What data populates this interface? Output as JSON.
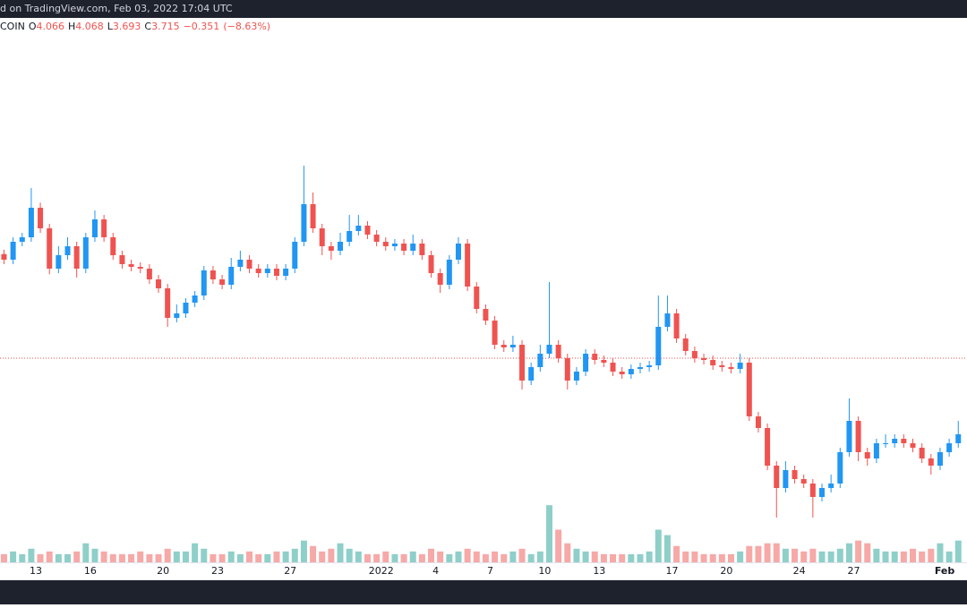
{
  "header": "d on TradingView.com, Feb 03, 2022 17:04 UTC",
  "chart_data": {
    "type": "candlestick",
    "symbol": "COIN",
    "ohlc": [
      {
        "key": "O",
        "value": 4.066
      },
      {
        "key": "H",
        "value": 4.068
      },
      {
        "key": "L",
        "value": 3.693
      },
      {
        "key": "C",
        "value": 3.715
      }
    ],
    "change": {
      "value": -0.351,
      "label": "−0.351"
    },
    "change_pct": {
      "value": -8.63,
      "label": "(−8.63%)"
    },
    "up_color": "#2196f3",
    "down_color": "#ef5350",
    "volume_up_color": "#8fcfc9",
    "volume_down_color": "#f6a9a7",
    "xlim": [
      11.03,
      64.23
    ],
    "xticks": [
      13,
      16,
      20,
      23,
      27,
      {
        "value": 32,
        "label": "2022"
      },
      {
        "value": 35,
        "label": "4"
      },
      {
        "value": 38,
        "label": "7"
      },
      {
        "value": 41,
        "label": "10"
      },
      {
        "value": 44,
        "label": "13"
      },
      {
        "value": 48,
        "label": "17"
      },
      {
        "value": 51,
        "label": "20"
      },
      {
        "value": 55,
        "label": "24"
      },
      {
        "value": 58,
        "label": "27"
      },
      {
        "value": 63,
        "label": "Feb"
      }
    ],
    "ylim": [
      2.803,
      5.235
    ],
    "y2lim": [
      0,
      200
    ],
    "x": [
      11.25,
      11.75,
      12.25,
      12.75,
      13.25,
      13.75,
      14.25,
      14.75,
      15.25,
      15.75,
      16.25,
      16.75,
      17.25,
      17.75,
      18.25,
      18.75,
      19.25,
      19.75,
      20.25,
      20.75,
      21.25,
      21.75,
      22.25,
      22.75,
      23.25,
      23.75,
      24.25,
      24.75,
      25.25,
      25.75,
      26.25,
      26.75,
      27.25,
      27.75,
      28.25,
      28.75,
      29.25,
      29.75,
      30.25,
      30.75,
      31.25,
      31.75,
      32.25,
      32.75,
      33.25,
      33.75,
      34.25,
      34.75,
      35.25,
      35.75,
      36.25,
      36.75,
      37.25,
      37.75,
      38.25,
      38.75,
      39.25,
      39.75,
      40.25,
      40.75,
      41.25,
      41.75,
      42.25,
      42.75,
      43.25,
      43.75,
      44.25,
      44.75,
      45.25,
      45.75,
      46.25,
      46.75,
      47.25,
      47.75,
      48.25,
      48.75,
      49.25,
      49.75,
      50.25,
      50.75,
      51.25,
      51.75,
      52.25,
      52.75,
      53.25,
      53.75,
      54.25,
      54.75,
      55.25,
      55.75,
      56.25,
      56.75,
      57.25,
      57.75,
      58.25,
      58.75,
      59.25,
      59.75,
      60.25,
      60.75,
      61.25,
      61.75,
      62.25,
      62.75,
      63.25,
      63.75
    ],
    "open": [
      4.18,
      4.155,
      4.235,
      4.255,
      4.387,
      4.295,
      4.115,
      4.175,
      4.215,
      4.115,
      4.255,
      4.335,
      4.255,
      4.175,
      4.135,
      4.123,
      4.115,
      4.067,
      4.027,
      3.895,
      3.915,
      3.963,
      3.995,
      4.107,
      4.067,
      4.043,
      4.123,
      4.155,
      4.115,
      4.095,
      4.115,
      4.083,
      4.115,
      4.235,
      4.403,
      4.295,
      4.215,
      4.195,
      4.235,
      4.283,
      4.307,
      4.267,
      4.235,
      4.215,
      4.227,
      4.195,
      4.227,
      4.175,
      4.095,
      4.043,
      4.155,
      4.227,
      4.035,
      3.935,
      3.883,
      3.775,
      3.763,
      3.775,
      3.615,
      3.675,
      3.735,
      3.775,
      3.715,
      3.615,
      3.655,
      3.735,
      3.707,
      3.695,
      3.655,
      3.643,
      3.667,
      3.675,
      3.683,
      3.855,
      3.915,
      3.803,
      3.747,
      3.715,
      3.707,
      3.683,
      3.675,
      3.667,
      3.695,
      3.455,
      3.403,
      3.235,
      3.135,
      3.215,
      3.175,
      3.155,
      3.095,
      3.135,
      3.155,
      3.295,
      3.435,
      3.295,
      3.267,
      3.335,
      3.335,
      3.355,
      3.335,
      3.315,
      3.267,
      3.235,
      3.295,
      3.335
    ],
    "high": [
      4.2,
      4.255,
      4.275,
      4.475,
      4.41,
      4.315,
      4.215,
      4.255,
      4.235,
      4.275,
      4.375,
      4.355,
      4.275,
      4.195,
      4.155,
      4.143,
      4.135,
      4.087,
      4.047,
      3.955,
      3.983,
      4.015,
      4.127,
      4.127,
      4.087,
      4.163,
      4.195,
      4.175,
      4.135,
      4.135,
      4.135,
      4.135,
      4.255,
      4.575,
      4.455,
      4.315,
      4.235,
      4.275,
      4.355,
      4.355,
      4.327,
      4.287,
      4.255,
      4.247,
      4.247,
      4.267,
      4.247,
      4.195,
      4.115,
      4.175,
      4.255,
      4.247,
      4.055,
      3.955,
      3.903,
      3.795,
      3.815,
      3.795,
      3.695,
      3.775,
      4.055,
      3.795,
      3.735,
      3.675,
      3.755,
      3.755,
      3.727,
      3.715,
      3.675,
      3.687,
      3.695,
      3.703,
      3.995,
      3.995,
      3.935,
      3.823,
      3.767,
      3.735,
      3.727,
      3.703,
      3.695,
      3.735,
      3.715,
      3.475,
      3.423,
      3.255,
      3.255,
      3.235,
      3.195,
      3.175,
      3.155,
      3.195,
      3.315,
      3.535,
      3.455,
      3.315,
      3.355,
      3.375,
      3.375,
      3.375,
      3.355,
      3.335,
      3.287,
      3.315,
      3.355,
      3.435
    ],
    "low": [
      4.135,
      4.135,
      4.215,
      4.235,
      4.275,
      4.09,
      4.095,
      4.155,
      4.075,
      4.095,
      4.235,
      4.235,
      4.155,
      4.115,
      4.103,
      4.095,
      4.047,
      4.007,
      3.855,
      3.875,
      3.895,
      3.943,
      3.975,
      4.047,
      4.023,
      4.023,
      4.103,
      4.095,
      4.075,
      4.075,
      4.063,
      4.063,
      4.095,
      4.215,
      4.275,
      4.175,
      4.155,
      4.175,
      4.215,
      4.263,
      4.247,
      4.215,
      4.195,
      4.195,
      4.175,
      4.175,
      4.155,
      4.075,
      4.007,
      4.023,
      4.135,
      4.015,
      3.915,
      3.863,
      3.755,
      3.743,
      3.743,
      3.575,
      3.595,
      3.655,
      3.715,
      3.695,
      3.575,
      3.595,
      3.635,
      3.687,
      3.675,
      3.635,
      3.623,
      3.623,
      3.647,
      3.655,
      3.663,
      3.835,
      3.783,
      3.727,
      3.695,
      3.687,
      3.663,
      3.655,
      3.647,
      3.647,
      3.435,
      3.383,
      3.215,
      3.003,
      3.115,
      3.155,
      3.135,
      3.003,
      3.075,
      3.115,
      3.135,
      3.275,
      3.255,
      3.235,
      3.247,
      3.315,
      3.315,
      3.315,
      3.295,
      3.247,
      3.195,
      3.215,
      3.275,
      3.315
    ],
    "close": [
      4.155,
      4.235,
      4.255,
      4.387,
      4.295,
      4.115,
      4.175,
      4.215,
      4.115,
      4.255,
      4.335,
      4.255,
      4.175,
      4.135,
      4.123,
      4.115,
      4.067,
      4.027,
      3.895,
      3.915,
      3.963,
      3.995,
      4.107,
      4.067,
      4.043,
      4.123,
      4.155,
      4.115,
      4.095,
      4.115,
      4.083,
      4.115,
      4.235,
      4.403,
      4.295,
      4.215,
      4.195,
      4.235,
      4.283,
      4.307,
      4.267,
      4.235,
      4.215,
      4.227,
      4.195,
      4.227,
      4.175,
      4.095,
      4.043,
      4.155,
      4.227,
      4.035,
      3.935,
      3.883,
      3.775,
      3.763,
      3.775,
      3.615,
      3.675,
      3.735,
      3.775,
      3.715,
      3.615,
      3.655,
      3.735,
      3.707,
      3.695,
      3.655,
      3.643,
      3.667,
      3.675,
      3.683,
      3.855,
      3.915,
      3.803,
      3.747,
      3.715,
      3.707,
      3.683,
      3.675,
      3.667,
      3.695,
      3.455,
      3.403,
      3.235,
      3.135,
      3.215,
      3.175,
      3.155,
      3.095,
      3.135,
      3.155,
      3.295,
      3.435,
      3.295,
      3.267,
      3.335,
      3.335,
      3.355,
      3.335,
      3.315,
      3.267,
      3.235,
      3.295,
      3.335,
      3.375
    ],
    "volume": [
      3,
      4,
      3,
      5,
      3,
      4,
      3,
      3,
      4,
      7,
      5,
      4,
      3,
      3,
      3,
      4,
      3,
      3,
      5,
      4,
      4,
      7,
      5,
      3,
      3,
      4,
      3,
      4,
      3,
      3,
      4,
      4,
      5,
      8,
      6,
      4,
      5,
      7,
      5,
      4,
      3,
      3,
      4,
      3,
      3,
      4,
      3,
      5,
      4,
      3,
      4,
      5,
      4,
      3,
      4,
      3,
      4,
      5,
      3,
      4,
      21,
      12,
      7,
      5,
      4,
      4,
      3,
      3,
      3,
      3,
      3,
      4,
      12,
      10,
      6,
      4,
      4,
      3,
      3,
      3,
      3,
      4,
      6,
      6,
      7,
      7,
      5,
      5,
      4,
      5,
      4,
      4,
      5,
      7,
      8,
      7,
      5,
      4,
      4,
      4,
      5,
      4,
      5,
      7,
      4,
      8
    ]
  }
}
